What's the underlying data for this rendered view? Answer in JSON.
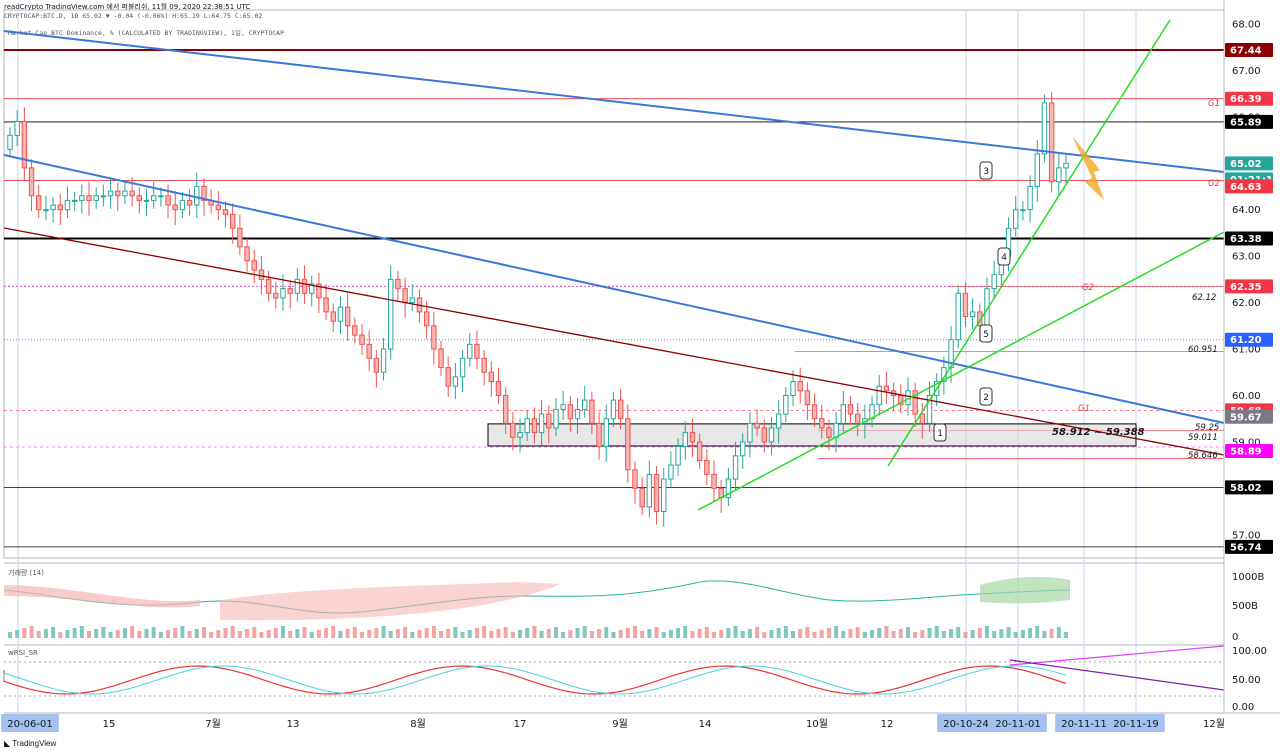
{
  "header": {
    "line1": "readCrypto TradingView.com 에서 퍼블리쉬, 11월 09, 2020 22:38:51 UTC",
    "line2": "CRYPTOCAP:BTC.D, 1D 65.02 ▼ -0.04 (-0.06%) H:65.19 L:64.75 C:65.02",
    "title": "Market Cap BTC Dominance, % (CALCULATED BY TRADINGVIEW), 1일, CRYPTOCAP"
  },
  "chart_data": {
    "type": "candlestick",
    "symbol": "CRYPTOCAP:BTC.D",
    "ylim": [
      56.5,
      68.3
    ],
    "y_ticks": [
      "68.00",
      "67.00",
      "66.00",
      "65.00",
      "64.00",
      "63.00",
      "62.00",
      "61.00",
      "60.00",
      "59.00",
      "58.00",
      "57.00"
    ],
    "price_labels": [
      {
        "value": "67.44",
        "color": "#8b0000"
      },
      {
        "value": "66.39",
        "color": "#f23645"
      },
      {
        "value": "65.89",
        "color": "#000000"
      },
      {
        "value": "65.02",
        "color": "#26a69a"
      },
      {
        "value": "01:21:11",
        "color": "#26a69a"
      },
      {
        "value": "64.63",
        "color": "#f23645"
      },
      {
        "value": "63.38",
        "color": "#000000"
      },
      {
        "value": "62.35",
        "color": "#f23645"
      },
      {
        "value": "61.20",
        "color": "#2962ff"
      },
      {
        "value": "59.68",
        "color": "#f23645"
      },
      {
        "value": "59.67",
        "color": "#787b86"
      },
      {
        "value": "58.89",
        "color": "#ff00ff"
      },
      {
        "value": "58.02",
        "color": "#000000"
      },
      {
        "value": "56.74",
        "color": "#000000"
      }
    ],
    "annotations": [
      "G1",
      "G2",
      "G2",
      "G1",
      "62.12",
      "60.951",
      "59.25",
      "59.011",
      "58.646",
      "58.912 ~ 59.388",
      "1",
      "2",
      "3",
      "4",
      "5"
    ],
    "x_ticks": [
      "20-06-01",
      "15",
      "7월",
      "13",
      "8월",
      "17",
      "9월",
      "14",
      "10월",
      "12",
      "20-10-24",
      "20-11-01",
      "20-11-11",
      "20-11-19",
      "12월"
    ],
    "candles_close": [
      65.6,
      65.9,
      64.9,
      64.3,
      64.0,
      64.0,
      64.1,
      64.0,
      64.2,
      64.2,
      64.3,
      64.2,
      64.3,
      64.3,
      64.4,
      64.3,
      64.4,
      64.3,
      64.2,
      64.2,
      64.3,
      64.3,
      64.1,
      64.0,
      64.2,
      64.1,
      64.5,
      64.2,
      64.1,
      64.0,
      63.9,
      63.6,
      63.2,
      62.9,
      62.7,
      62.5,
      62.2,
      62.1,
      62.3,
      62.2,
      62.5,
      62.2,
      62.4,
      62.1,
      61.8,
      61.6,
      61.9,
      61.5,
      61.3,
      61.1,
      60.8,
      60.5,
      61.0,
      62.5,
      62.3,
      62.0,
      62.1,
      61.8,
      61.5,
      61.0,
      60.6,
      60.2,
      60.4,
      60.8,
      61.1,
      60.8,
      60.5,
      60.3,
      60.0,
      59.4,
      59.1,
      59.2,
      59.5,
      59.2,
      59.6,
      59.3,
      59.7,
      59.8,
      59.5,
      59.7,
      59.9,
      59.4,
      58.9,
      59.5,
      59.9,
      59.5,
      58.4,
      58.0,
      57.6,
      58.3,
      57.5,
      58.2,
      58.5,
      58.9,
      59.2,
      59.0,
      58.6,
      58.3,
      58.0,
      57.8,
      58.2,
      58.7,
      59.0,
      59.4,
      59.3,
      59.0,
      59.3,
      59.6,
      60.0,
      60.3,
      60.1,
      59.8,
      59.5,
      59.3,
      59.1,
      59.4,
      59.8,
      59.6,
      59.4,
      59.5,
      59.8,
      60.2,
      60.1,
      60.0,
      59.8,
      60.1,
      59.6,
      59.4,
      60.0,
      60.3,
      60.6,
      61.2,
      62.2,
      61.7,
      61.8,
      61.5,
      62.3,
      62.6,
      63.0,
      63.6,
      64.0,
      64.0,
      64.5,
      65.2,
      66.3,
      64.6,
      64.9,
      65.0
    ],
    "volume_panel": {
      "label": "거래량 (14)",
      "y_ticks": [
        "1000B",
        "500B",
        "0"
      ]
    },
    "rsi_panel": {
      "label": "wRSI_SR",
      "y_ticks": [
        "100.00",
        "50.00",
        "0.00"
      ]
    }
  },
  "colors": {
    "up": "#26a69a",
    "down": "#ef5350",
    "trend_blue": "#3a78d8",
    "trend_green": "#22dd22",
    "trend_darkred": "#8b0000",
    "arrow": "#f5a623",
    "date_highlight": "#a3c1ef"
  },
  "footer": {
    "logo": "TradingView"
  }
}
